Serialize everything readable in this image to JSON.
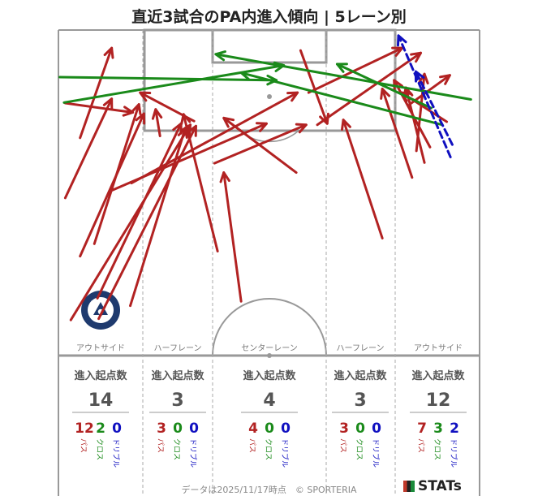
{
  "title": "直近3試合のPA内進入傾向 | 5レーン別",
  "badge_text": "KAGOSHIMA UNITED FC",
  "lanes": [
    {
      "label": "アウトサイド",
      "head": "進入起点数",
      "total": "14",
      "pass": "12",
      "cross": "2",
      "dribble": "0"
    },
    {
      "label": "ハーフレーン",
      "head": "進入起点数",
      "total": "3",
      "pass": "3",
      "cross": "0",
      "dribble": "0"
    },
    {
      "label": "センターレーン",
      "head": "進入起点数",
      "total": "4",
      "pass": "4",
      "cross": "0",
      "dribble": "0"
    },
    {
      "label": "ハーフレーン",
      "head": "進入起点数",
      "total": "3",
      "pass": "3",
      "cross": "0",
      "dribble": "0"
    },
    {
      "label": "アウトサイド",
      "head": "進入起点数",
      "total": "12",
      "pass": "7",
      "cross": "3",
      "dribble": "2"
    }
  ],
  "sub_labels": {
    "pass": "パス",
    "cross": "クロス",
    "dribble": "ドリブル"
  },
  "colors": {
    "pass": "#b22222",
    "cross": "#1a8a1a",
    "dribble": "#1010c0",
    "lines": "#999999"
  },
  "footer": "データは2025/11/17時点　© SPORTERIA",
  "brand": "STATs",
  "chart_data": {
    "type": "arrow-map",
    "title": "直近3試合のPA内進入傾向 | 5レーン別",
    "field": {
      "length_m": 52.5,
      "width_m": 68
    },
    "coordinate_note": "x across pitch 0-68 m (left to right), y distance from goal line 0-52.5 m",
    "arrows": [
      {
        "kind": "pass",
        "from": [
          2,
          46.8
        ],
        "to": [
          21.3,
          15.3
        ]
      },
      {
        "kind": "pass",
        "from": [
          6.5,
          46.6
        ],
        "to": [
          22.2,
          15.5
        ]
      },
      {
        "kind": "pass",
        "from": [
          11.6,
          44.5
        ],
        "to": [
          20.5,
          15.8
        ]
      },
      {
        "kind": "pass",
        "from": [
          6.3,
          43.3
        ],
        "to": [
          19.8,
          15.1
        ]
      },
      {
        "kind": "pass",
        "from": [
          3.5,
          36.5
        ],
        "to": [
          13.8,
          13.5
        ]
      },
      {
        "kind": "pass",
        "from": [
          5.8,
          34.5
        ],
        "to": [
          13.0,
          12.0
        ]
      },
      {
        "kind": "pass",
        "from": [
          8.6,
          25.9
        ],
        "to": [
          33.6,
          15.1
        ]
      },
      {
        "kind": "pass",
        "from": [
          11.8,
          24.7
        ],
        "to": [
          38.6,
          10.1
        ]
      },
      {
        "kind": "pass",
        "from": [
          1.1,
          27.1
        ],
        "to": [
          8.6,
          11.1
        ]
      },
      {
        "kind": "pass",
        "from": [
          3.5,
          17.4
        ],
        "to": [
          8.6,
          2.9
        ]
      },
      {
        "kind": "pass",
        "from": [
          1.1,
          11.8
        ],
        "to": [
          12.0,
          13.3
        ]
      },
      {
        "kind": "pass",
        "from": [
          16.4,
          17.1
        ],
        "to": [
          15.7,
          12.8
        ]
      },
      {
        "kind": "pass",
        "from": [
          21.9,
          14.7
        ],
        "to": [
          13.2,
          10.1
        ]
      },
      {
        "kind": "pass",
        "from": [
          25.7,
          35.7
        ],
        "to": [
          20.2,
          13.6
        ]
      },
      {
        "kind": "pass",
        "from": [
          29.5,
          43.8
        ],
        "to": [
          26.7,
          23.0
        ]
      },
      {
        "kind": "pass",
        "from": [
          38.4,
          23.0
        ],
        "to": [
          26.7,
          14.2
        ]
      },
      {
        "kind": "pass",
        "from": [
          25.2,
          21.5
        ],
        "to": [
          40.0,
          15.3
        ]
      },
      {
        "kind": "pass",
        "from": [
          39.1,
          3.3
        ],
        "to": [
          43.4,
          15.1
        ]
      },
      {
        "kind": "pass",
        "from": [
          40.4,
          10.1
        ],
        "to": [
          55.5,
          2.9
        ]
      },
      {
        "kind": "pass",
        "from": [
          41.8,
          15.3
        ],
        "to": [
          58.5,
          3.7
        ]
      },
      {
        "kind": "pass",
        "from": [
          52.3,
          33.6
        ],
        "to": [
          46.0,
          14.5
        ]
      },
      {
        "kind": "pass",
        "from": [
          57.1,
          23.8
        ],
        "to": [
          52.3,
          9.5
        ]
      },
      {
        "kind": "pass",
        "from": [
          59.1,
          21.4
        ],
        "to": [
          56.1,
          9.3
        ]
      },
      {
        "kind": "pass",
        "from": [
          60.0,
          18.9
        ],
        "to": [
          54.2,
          8.1
        ]
      },
      {
        "kind": "pass",
        "from": [
          62.7,
          14.8
        ],
        "to": [
          55.4,
          10.1
        ]
      },
      {
        "kind": "pass",
        "from": [
          57.8,
          19.5
        ],
        "to": [
          59.1,
          7.1
        ]
      },
      {
        "kind": "pass",
        "from": [
          56.7,
          12.0
        ],
        "to": [
          63.2,
          7.3
        ]
      },
      {
        "kind": "cross",
        "from": [
          0.9,
          11.7
        ],
        "to": [
          36.4,
          5.7
        ]
      },
      {
        "kind": "cross",
        "from": [
          0.2,
          7.6
        ],
        "to": [
          35.2,
          8.1
        ]
      },
      {
        "kind": "cross",
        "from": [
          62.0,
          15.3
        ],
        "to": [
          29.5,
          6.9
        ]
      },
      {
        "kind": "cross",
        "from": [
          66.6,
          11.2
        ],
        "to": [
          25.4,
          3.9
        ]
      },
      {
        "kind": "cross",
        "from": [
          60.2,
          12.6
        ],
        "to": [
          45.0,
          5.5
        ]
      },
      {
        "kind": "dribble",
        "from": [
          63.3,
          20.5
        ],
        "to": [
          54.9,
          0.9
        ]
      },
      {
        "kind": "dribble",
        "from": [
          63.6,
          18.5
        ],
        "to": [
          57.7,
          6.7
        ]
      }
    ]
  }
}
